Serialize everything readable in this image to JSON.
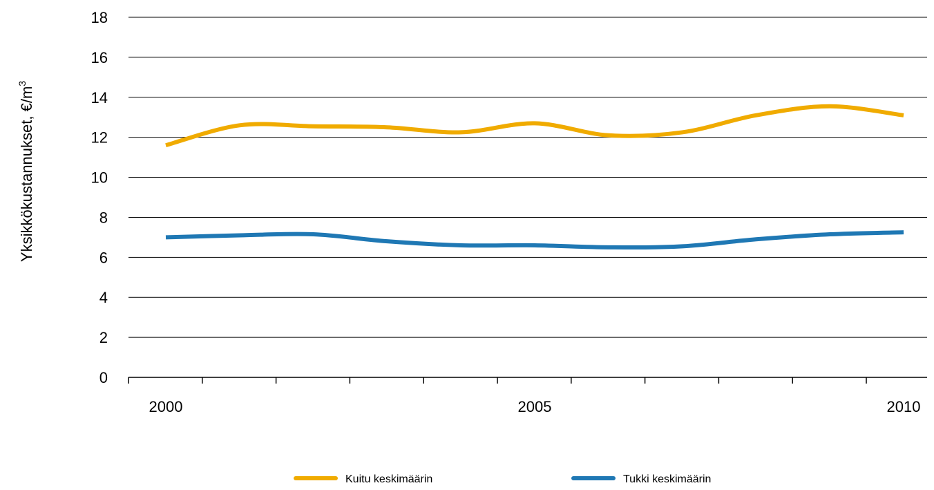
{
  "chart_data": {
    "type": "line",
    "title": "",
    "xlabel": "",
    "ylabel": "Yksikkökustannukset, €/m",
    "ylabel_superscript": "3",
    "ylim": [
      0,
      18
    ],
    "y_ticks": [
      "0",
      "2",
      "4",
      "6",
      "8",
      "10",
      "12",
      "14",
      "16",
      "18"
    ],
    "x_ticks": [
      "2000",
      "2005",
      "2010"
    ],
    "x": [
      2000,
      2001,
      2002,
      2003,
      2004,
      2005,
      2006,
      2007,
      2008,
      2009,
      2010
    ],
    "grid": "horizontal",
    "legend_position": "bottom",
    "series": [
      {
        "name": "Kuitu keskimäärin",
        "color": "#f0ab00",
        "values": [
          11.6,
          12.6,
          12.55,
          12.5,
          12.25,
          12.7,
          12.1,
          12.25,
          13.1,
          13.55,
          13.1
        ]
      },
      {
        "name": "Tukki keskimäärin",
        "color": "#1f78b4",
        "values": [
          7.0,
          7.1,
          7.15,
          6.8,
          6.6,
          6.6,
          6.5,
          6.55,
          6.9,
          7.15,
          7.25
        ]
      }
    ]
  }
}
